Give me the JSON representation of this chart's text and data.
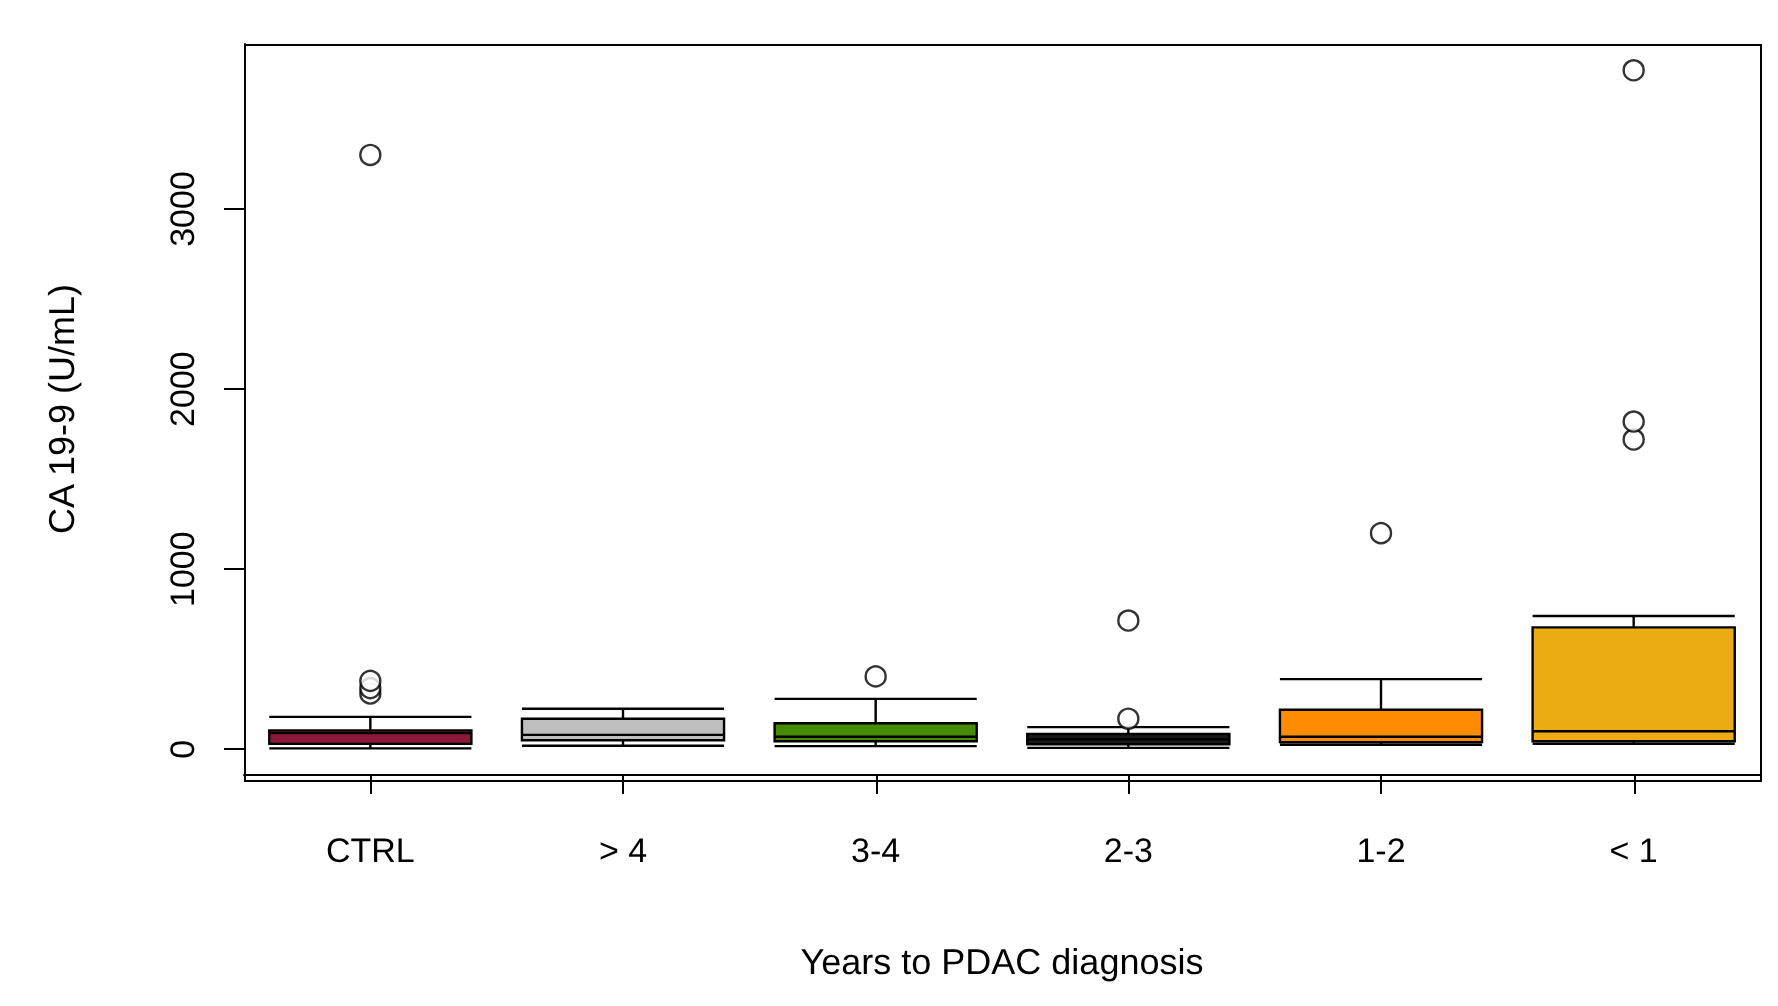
{
  "chart_data": {
    "type": "box",
    "xlabel": "Years to PDAC diagnosis",
    "ylabel": "CA 19-9 (U/mL)",
    "categories": [
      "CTRL",
      "> 4",
      "3-4",
      "2-3",
      "1-2",
      "< 1"
    ],
    "colors": [
      "#8b1a3a",
      "#bebebe",
      "#458b00",
      "#1a1a1a",
      "#ff8c00",
      "#ebab12"
    ],
    "boxes": [
      {
        "low": 5,
        "q1": 30,
        "median": 90,
        "q3": 105,
        "high": 180,
        "outliers": [
          310,
          340,
          380,
          3300
        ]
      },
      {
        "low": 20,
        "q1": 50,
        "median": 80,
        "q3": 170,
        "high": 225
      },
      {
        "low": 18,
        "q1": 45,
        "median": 70,
        "q3": 145,
        "high": 280,
        "outliers": [
          405
        ]
      },
      {
        "low": 8,
        "q1": 28,
        "median": 55,
        "q3": 85,
        "high": 123,
        "outliers": [
          170,
          715
        ]
      },
      {
        "low": 25,
        "q1": 40,
        "median": 70,
        "q3": 220,
        "high": 390,
        "outliers": [
          1200
        ]
      },
      {
        "low": 30,
        "q1": 45,
        "median": 100,
        "q3": 677,
        "high": 740,
        "outliers": [
          1720,
          1820,
          3770
        ]
      }
    ],
    "ylim": [
      -137,
      3916
    ],
    "yticks": [
      0,
      1000,
      2000,
      3000
    ],
    "marker": "circle"
  }
}
